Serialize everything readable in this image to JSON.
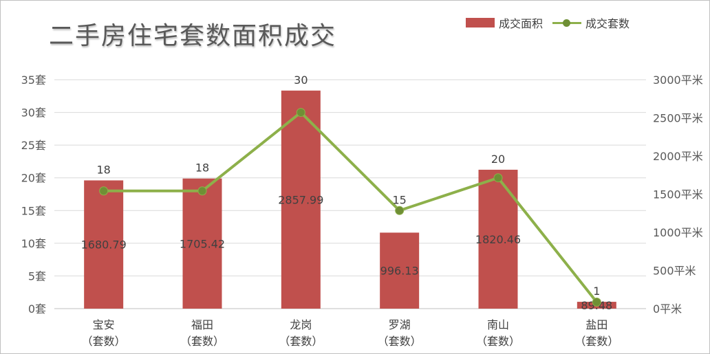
{
  "chart_data": {
    "type": "bar+line",
    "title": "二手房住宅套数面积成交",
    "categories": [
      "宝安\n（套数）",
      "福田\n（套数）",
      "龙岗\n（套数）",
      "罗湖\n（套数）",
      "南山\n（套数）",
      "盐田\n（套数）"
    ],
    "series": [
      {
        "name": "成交面积",
        "kind": "bar",
        "axis": "right",
        "color": "#c0504d",
        "values": [
          1680.79,
          1705.42,
          2857.99,
          996.13,
          1820.46,
          89.48
        ],
        "labels": [
          "1680.79",
          "1705.42",
          "2857.99",
          "996.13",
          "1820.46",
          "89.48"
        ]
      },
      {
        "name": "成交套数",
        "kind": "line",
        "axis": "left",
        "color": "#8db04a",
        "marker_color": "#6f8f35",
        "values": [
          18,
          18,
          30,
          15,
          20,
          1
        ],
        "labels": [
          "18",
          "18",
          "30",
          "15",
          "20",
          "1"
        ]
      }
    ],
    "y_left": {
      "range": [
        0,
        35
      ],
      "ticks": [
        0,
        5,
        10,
        15,
        20,
        25,
        30,
        35
      ],
      "tick_labels": [
        "0套",
        "5套",
        "10套",
        "15套",
        "20套",
        "25套",
        "30套",
        "35套"
      ]
    },
    "y_right": {
      "range": [
        0,
        3000
      ],
      "ticks": [
        0,
        500,
        1000,
        1500,
        2000,
        2500,
        3000
      ],
      "tick_labels": [
        "0平米",
        "500平米",
        "1000平米",
        "1500平米",
        "2000平米",
        "2500平米",
        "3000平米"
      ]
    },
    "grid": true,
    "legend_position": "top-right"
  }
}
